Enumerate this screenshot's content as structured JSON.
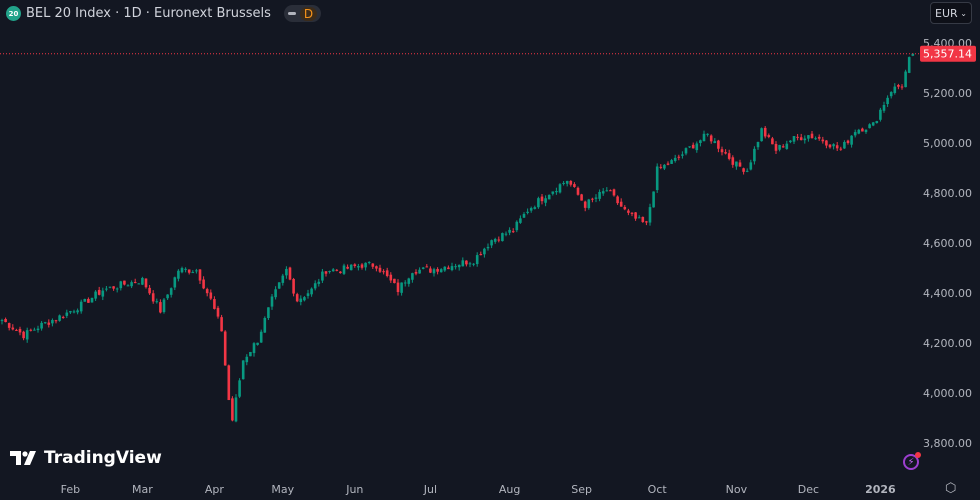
{
  "header": {
    "symbol_badge": "20",
    "title": "BEL 20 Index · 1D · Euronext Brussels",
    "interval_badge": "D"
  },
  "currency_selector": {
    "value": "EUR",
    "icon": "chevron-down-icon"
  },
  "branding": {
    "logo_text": "TradingView"
  },
  "colors": {
    "up": "#089981",
    "down": "#f23645",
    "background": "#131722",
    "axis_text": "#b2b5be"
  },
  "chart_data": {
    "type": "candlestick",
    "title": "BEL 20 Index · 1D · Euronext Brussels",
    "last_price": 5357.14,
    "last_price_label": "5,357.14",
    "ylim": [
      3760,
      5440
    ],
    "y_ticks": [
      5400,
      5200,
      5000,
      4800,
      4600,
      4400,
      4200,
      4000,
      3800
    ],
    "y_tick_labels": [
      "5,400.00",
      "5,200.00",
      "5,000.00",
      "4,800.00",
      "4,600.00",
      "4,400.00",
      "4,200.00",
      "4,000.00",
      "3,800.00"
    ],
    "x_ticks": [
      {
        "label": "Feb",
        "day": 19
      },
      {
        "label": "Mar",
        "day": 39
      },
      {
        "label": "Apr",
        "day": 59
      },
      {
        "label": "May",
        "day": 78
      },
      {
        "label": "Jun",
        "day": 98
      },
      {
        "label": "Jul",
        "day": 119
      },
      {
        "label": "Aug",
        "day": 141
      },
      {
        "label": "Sep",
        "day": 161
      },
      {
        "label": "Oct",
        "day": 182
      },
      {
        "label": "Nov",
        "day": 204
      },
      {
        "label": "Dec",
        "day": 224
      },
      {
        "label": "2026",
        "day": 244
      }
    ],
    "num_days": 254,
    "close_anchors": [
      [
        0,
        4292
      ],
      [
        6,
        4232
      ],
      [
        11,
        4272
      ],
      [
        17,
        4312
      ],
      [
        22,
        4352
      ],
      [
        28,
        4412
      ],
      [
        33,
        4432
      ],
      [
        39,
        4452
      ],
      [
        44,
        4330
      ],
      [
        49,
        4492
      ],
      [
        54,
        4492
      ],
      [
        58,
        4372
      ],
      [
        61,
        4252
      ],
      [
        63,
        3972
      ],
      [
        64,
        3892
      ],
      [
        67,
        4132
      ],
      [
        71,
        4212
      ],
      [
        75,
        4372
      ],
      [
        79,
        4492
      ],
      [
        82,
        4372
      ],
      [
        86,
        4412
      ],
      [
        90,
        4492
      ],
      [
        94,
        4492
      ],
      [
        100,
        4512
      ],
      [
        104,
        4512
      ],
      [
        110,
        4412
      ],
      [
        114,
        4492
      ],
      [
        119,
        4492
      ],
      [
        125,
        4512
      ],
      [
        131,
        4532
      ],
      [
        136,
        4612
      ],
      [
        142,
        4652
      ],
      [
        146,
        4732
      ],
      [
        151,
        4792
      ],
      [
        157,
        4852
      ],
      [
        162,
        4752
      ],
      [
        168,
        4812
      ],
      [
        174,
        4712
      ],
      [
        179,
        4672
      ],
      [
        182,
        4892
      ],
      [
        187,
        4932
      ],
      [
        192,
        4992
      ],
      [
        196,
        5032
      ],
      [
        200,
        4972
      ],
      [
        204,
        4912
      ],
      [
        207,
        4892
      ],
      [
        211,
        5052
      ],
      [
        215,
        4972
      ],
      [
        219,
        5012
      ],
      [
        224,
        5032
      ],
      [
        228,
        5012
      ],
      [
        233,
        4972
      ],
      [
        237,
        5052
      ],
      [
        242,
        5072
      ],
      [
        244,
        5132
      ],
      [
        247,
        5212
      ],
      [
        250,
        5232
      ],
      [
        252,
        5332
      ],
      [
        253,
        5357.14
      ]
    ]
  }
}
